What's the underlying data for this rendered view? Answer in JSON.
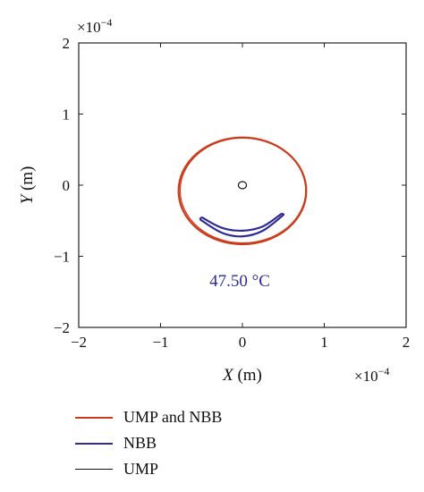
{
  "chart_data": {
    "type": "line",
    "xlabel_var": "X",
    "xlabel_unit": " (m)",
    "ylabel_var": "Y",
    "ylabel_unit": " (m)",
    "x_exponent": "−4",
    "y_exponent": "−4",
    "exponent_base": "×10",
    "xlim": [
      -2,
      2
    ],
    "ylim": [
      -2,
      2
    ],
    "x_ticks": [
      -2,
      -1,
      0,
      1,
      2
    ],
    "y_ticks": [
      -2,
      -1,
      0,
      1,
      2
    ],
    "x_tick_labels": [
      "−2",
      "−1",
      "0",
      "1",
      "2"
    ],
    "y_tick_labels": [
      "−2",
      "−1",
      "0",
      "1",
      "2"
    ],
    "grid": false,
    "annotation": "47.50 °C",
    "annotation_color": "#2e2a96",
    "series": [
      {
        "name": "UMP and NBB",
        "color": "#cc3b1c",
        "shape": "ellipse",
        "center": [
          0.0,
          -0.08
        ],
        "radius_x": 0.78,
        "radius_y": 0.75
      },
      {
        "name": "NBB",
        "color": "#2e2a96",
        "shape": "crescent",
        "upper_edge": [
          [
            -0.5,
            -0.45
          ],
          [
            -0.25,
            -0.6
          ],
          [
            0.0,
            -0.64
          ],
          [
            0.25,
            -0.58
          ],
          [
            0.48,
            -0.4
          ]
        ],
        "lower_edge": [
          [
            -0.52,
            -0.48
          ],
          [
            -0.25,
            -0.67
          ],
          [
            0.0,
            -0.72
          ],
          [
            0.25,
            -0.64
          ],
          [
            0.5,
            -0.42
          ]
        ]
      },
      {
        "name": "UMP",
        "color": "#111111",
        "shape": "ellipse",
        "center": [
          0.0,
          0.0
        ],
        "radius_x": 0.05,
        "radius_y": 0.05
      }
    ],
    "legend_position": "below"
  }
}
